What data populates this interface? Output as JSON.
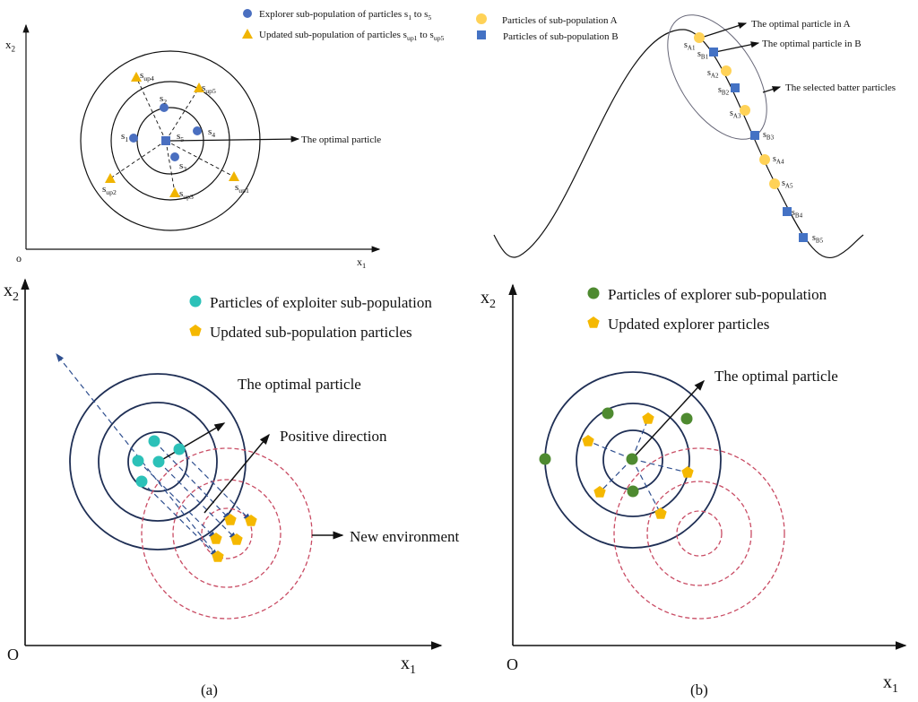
{
  "panel_top_left": {
    "axis_x": "x",
    "axis_x_sub": "1",
    "axis_y": "x",
    "axis_y_sub": "2",
    "origin": "o",
    "legend": [
      {
        "text": "Explorer sub-population of particles s",
        "sub1": "1",
        "mid": " to s",
        "sub2": "5"
      },
      {
        "text": "Updated sub-population of particles s",
        "sub1": "up1",
        "mid": " to s",
        "sub2": "up5"
      }
    ],
    "labels": [
      {
        "b": "s",
        "s": "1"
      },
      {
        "b": "s",
        "s": "2"
      },
      {
        "b": "s",
        "s": "3"
      },
      {
        "b": "s",
        "s": "4"
      },
      {
        "b": "s",
        "s": "5"
      },
      {
        "b": "s",
        "s": "up1"
      },
      {
        "b": "s",
        "s": "up2"
      },
      {
        "b": "s",
        "s": "up3"
      },
      {
        "b": "s",
        "s": "up4"
      },
      {
        "b": "s",
        "s": "up5"
      }
    ],
    "annotation": "The optimal particle",
    "colors": {
      "explorer": "#4a6fc0",
      "updated": "#f0b400"
    }
  },
  "panel_top_right": {
    "legend": [
      "Particles of  sub-population A",
      "Particles of  sub-population B"
    ],
    "labels": [
      {
        "b": "s",
        "s": "A1"
      },
      {
        "b": "s",
        "s": "B1"
      },
      {
        "b": "s",
        "s": "A2"
      },
      {
        "b": "s",
        "s": "B2"
      },
      {
        "b": "s",
        "s": "A3"
      },
      {
        "b": "s",
        "s": "B3"
      },
      {
        "b": "s",
        "s": "A4"
      },
      {
        "b": "s",
        "s": "A5"
      },
      {
        "b": "s",
        "s": "B4"
      },
      {
        "b": "s",
        "s": "B5"
      }
    ],
    "annotations": [
      "The optimal particle in A",
      "The optimal particle in B",
      "The selected batter particles"
    ],
    "colors": {
      "a": "#ffd257",
      "b": "#4472c4"
    }
  },
  "panel_a": {
    "caption": "(a)",
    "axis_x": "x",
    "axis_x_sub": "1",
    "axis_y": "x",
    "axis_y_sub": "2",
    "origin": "O",
    "legend": [
      "Particles of exploiter sub-population",
      "Updated sub-population particles"
    ],
    "annotations": [
      "The optimal particle",
      "Positive direction",
      "New environment"
    ],
    "colors": {
      "particle": "#2cc1b8",
      "updated": "#f5b800",
      "circle": "#1f2f55",
      "env": "#c94c64"
    }
  },
  "panel_b": {
    "caption": "(b)",
    "axis_x": "x",
    "axis_x_sub": "1",
    "axis_y": "x",
    "axis_y_sub": "2",
    "origin": "O",
    "legend": [
      "Particles of explorer sub-population",
      "Updated explorer particles"
    ],
    "annotations": [
      "The optimal particle"
    ],
    "colors": {
      "particle": "#4e8a30",
      "updated": "#f5b800"
    }
  }
}
